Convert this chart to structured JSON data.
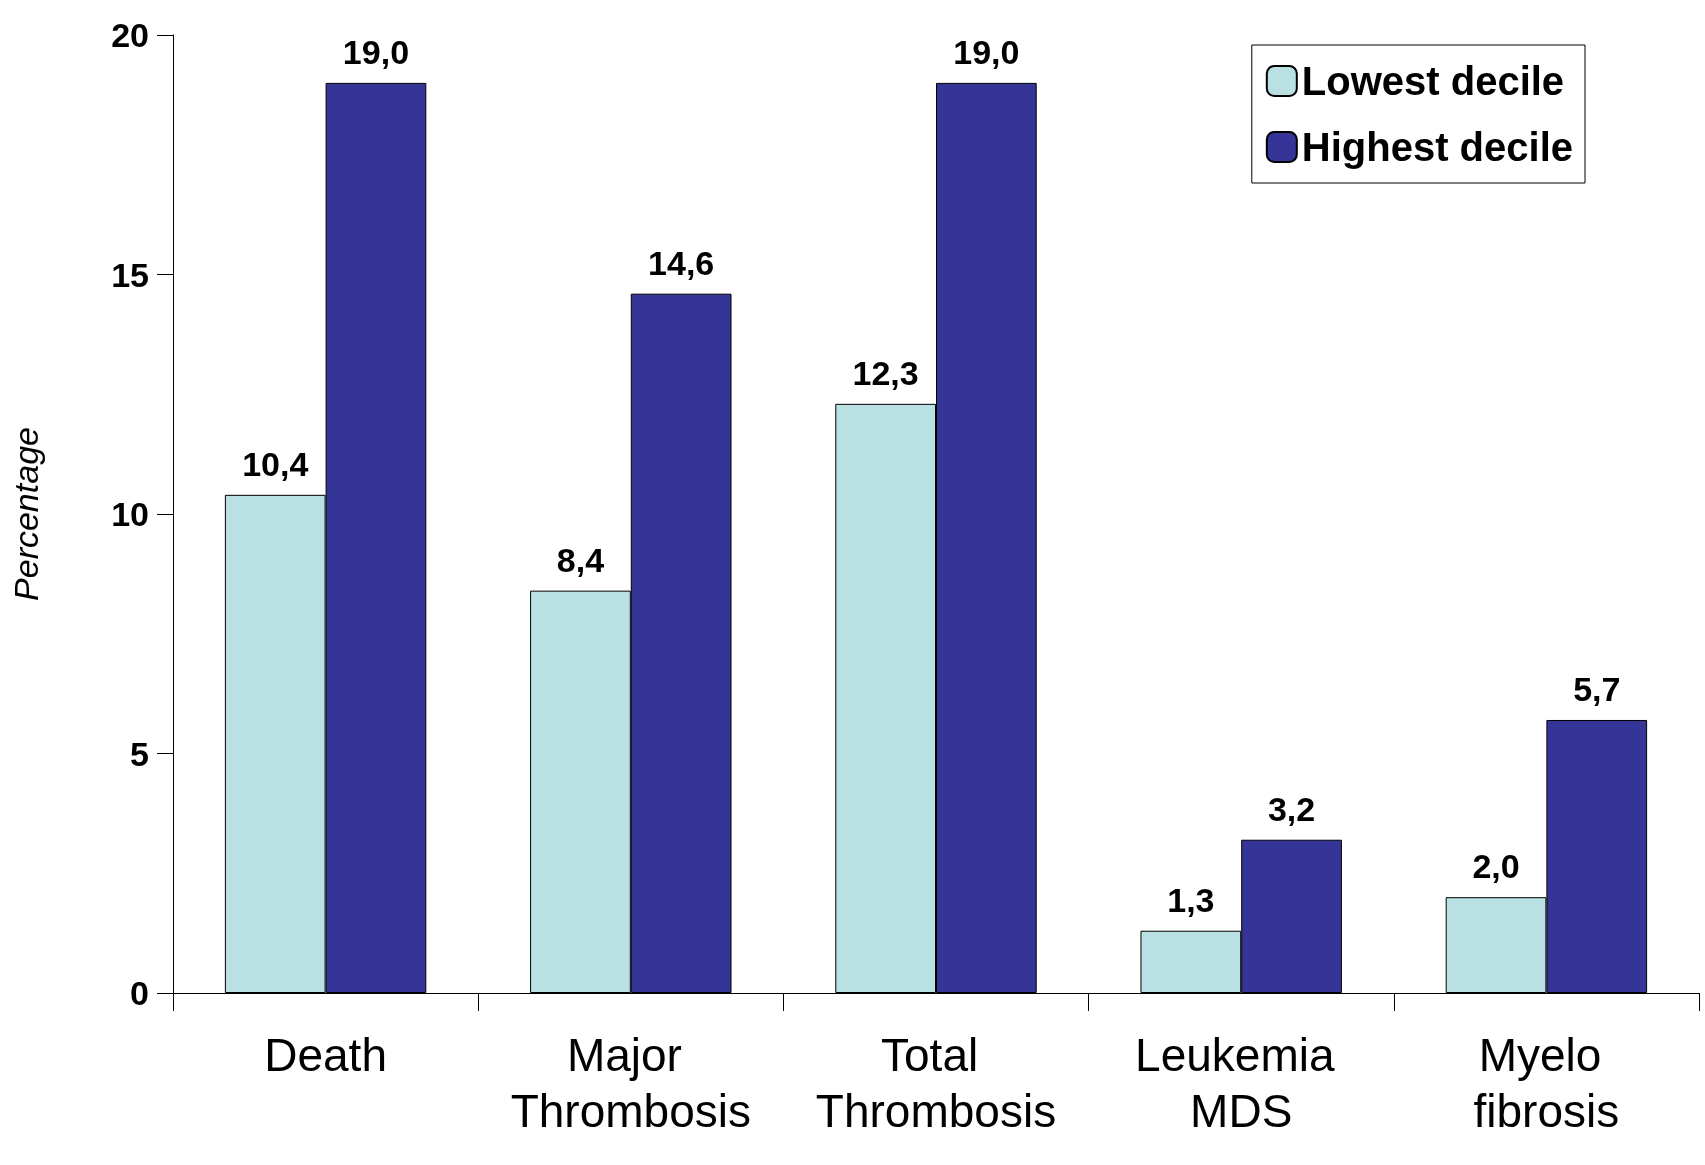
{
  "chart_data": {
    "type": "bar",
    "ylabel": "Percentage",
    "categories": [
      "Death",
      "Major Thrombosis",
      "Total Thrombosis",
      "Leukemia MDS",
      "Myelo fibrosis"
    ],
    "series": [
      {
        "name": "Lowest decile",
        "color": "#b9e1e3",
        "values": [
          10.4,
          8.4,
          12.3,
          1.3,
          2.0
        ],
        "value_labels": [
          "10,4",
          "8,4",
          "12,3",
          "1,3",
          "2,0"
        ]
      },
      {
        "name": "Highest decile",
        "color": "#353597",
        "values": [
          19.0,
          14.6,
          19.0,
          3.2,
          5.7
        ],
        "value_labels": [
          "19,0",
          "14,6",
          "19,0",
          "3,2",
          "5,7"
        ]
      }
    ],
    "ylim": [
      0,
      20
    ],
    "yticks": [
      0,
      5,
      10,
      15,
      20
    ],
    "grid": false,
    "legend": "top right"
  }
}
